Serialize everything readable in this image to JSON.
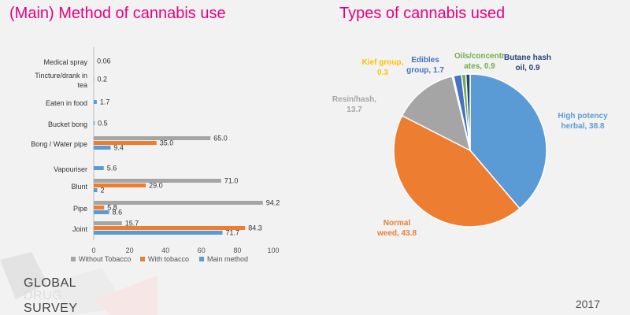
{
  "left_title": "(Main) Method of cannabis use",
  "right_title": "Types of cannabis used",
  "logo": {
    "line1": "GLOBAL",
    "line2": "DRUG",
    "line3": "SURVEY"
  },
  "year": "2017",
  "colors": {
    "title": "#e6007e",
    "without_tobacco": "#a5a5a5",
    "with_tobacco": "#ed7d31",
    "main_method": "#5b9bd5"
  },
  "chart_data": [
    {
      "type": "bar",
      "orientation": "horizontal",
      "title": "(Main) Method of cannabis use",
      "categories": [
        "Medical spray",
        "Tincture/drank in tea",
        "Eaten in food",
        "Bucket bong",
        "Bong / Water pipe",
        "Vapouriser",
        "Blunt",
        "Pipe",
        "Joint"
      ],
      "series": [
        {
          "name": "Without Tobacco",
          "color": "#a5a5a5",
          "values": [
            null,
            null,
            null,
            null,
            65.0,
            null,
            71.0,
            94.2,
            15.7
          ],
          "labels": [
            "",
            "",
            "",
            "",
            "65.0",
            "",
            "71.0",
            "94.2",
            "15.7"
          ]
        },
        {
          "name": "With tobacco",
          "color": "#ed7d31",
          "values": [
            null,
            null,
            null,
            null,
            35.0,
            null,
            29.0,
            5.8,
            84.3
          ],
          "labels": [
            "",
            "",
            "",
            "",
            "35.0",
            "",
            "29.0",
            "5.8",
            "84.3"
          ]
        },
        {
          "name": "Main method",
          "color": "#5b9bd5",
          "values": [
            0.06,
            0.2,
            1.7,
            0.5,
            9.4,
            5.6,
            2,
            8.6,
            71.7
          ],
          "labels": [
            "0.06",
            "0.2",
            "1.7",
            "0.5",
            "9.4",
            "5.6",
            "2",
            "8.6",
            "71.7"
          ]
        }
      ],
      "xlim": [
        0,
        100
      ],
      "xticks": [
        "0",
        "20",
        "40",
        "60",
        "80",
        "100"
      ],
      "legend": "bottom"
    },
    {
      "type": "pie",
      "title": "Types of cannabis used",
      "slices": [
        {
          "label": "High potency herbal",
          "value": 38.8,
          "display": "High potency herbal, 38.8",
          "color": "#5b9bd5"
        },
        {
          "label": "Normal weed",
          "value": 43.8,
          "display": "Normal weed, 43.8",
          "color": "#ed7d31"
        },
        {
          "label": "Resin/hash",
          "value": 13.7,
          "display": "Resin/hash, 13.7",
          "color": "#a5a5a5"
        },
        {
          "label": "Kief group",
          "value": 0.3,
          "display": "Kief group, 0.3",
          "color": "#ffc000"
        },
        {
          "label": "Edibles group",
          "value": 1.7,
          "display": "Edibles group, 1.7",
          "color": "#4472c4"
        },
        {
          "label": "Oils/concentrates",
          "value": 0.9,
          "display": "Oils/concentrates, 0.9",
          "color": "#70ad47"
        },
        {
          "label": "Butane hash oil",
          "value": 0.9,
          "display": "Butane hash oil, 0.9",
          "color": "#264478"
        }
      ]
    }
  ]
}
